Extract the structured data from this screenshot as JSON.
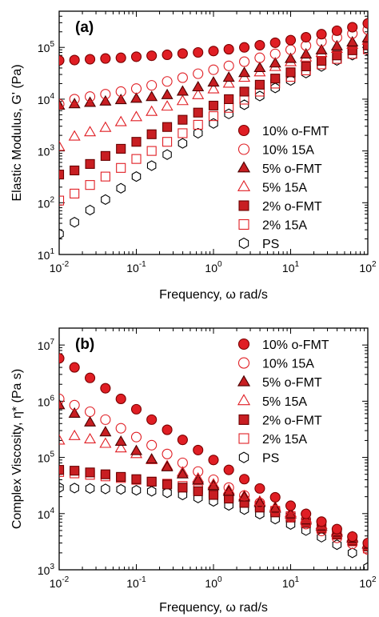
{
  "chart_data": [
    {
      "type": "scatter",
      "panel_label": "(a)",
      "xlabel": "Frequency, ω rad/s",
      "ylabel": "Elastic Modulus, G' (Pa)",
      "xscale": "log",
      "yscale": "log",
      "xlim": [
        0.01,
        100
      ],
      "ylim": [
        10,
        500000
      ],
      "x_ticks": [
        0.01,
        0.1,
        1,
        10,
        100
      ],
      "x_tick_labels": [
        [
          "10",
          "-2"
        ],
        [
          "10",
          "-1"
        ],
        [
          "10",
          "0"
        ],
        [
          "10",
          "1"
        ],
        [
          "10",
          "2"
        ]
      ],
      "y_ticks": [
        10,
        100,
        1000,
        10000,
        100000
      ],
      "y_tick_labels": [
        [
          "10",
          "1"
        ],
        [
          "10",
          "2"
        ],
        [
          "10",
          "3"
        ],
        [
          "10",
          "4"
        ],
        [
          "10",
          "5"
        ]
      ],
      "legend_position": "right",
      "x": [
        0.01,
        0.0158,
        0.0251,
        0.0398,
        0.0631,
        0.1,
        0.158,
        0.251,
        0.398,
        0.631,
        1,
        1.58,
        2.51,
        3.98,
        6.31,
        10,
        15.8,
        25.1,
        39.8,
        63.1,
        100
      ],
      "series": [
        {
          "name": "10% o-FMT",
          "marker": "circle",
          "fill": "#e01e24",
          "stroke": "#7a0000",
          "values": [
            56000,
            57000,
            59000,
            61000,
            63000,
            66000,
            69000,
            72000,
            76000,
            80000,
            85000,
            92000,
            100000,
            110000,
            123000,
            138000,
            157000,
            180000,
            210000,
            245000,
            290000
          ]
        },
        {
          "name": "10% 15A",
          "marker": "circle",
          "fill": "none",
          "stroke": "#e01e24",
          "values": [
            8000,
            10000,
            11200,
            12500,
            14000,
            16000,
            18500,
            22000,
            26000,
            31000,
            37000,
            44000,
            53000,
            63000,
            75000,
            90000,
            108000,
            130000,
            155000,
            185000,
            220000
          ]
        },
        {
          "name": "5% o-FMT",
          "marker": "triangle",
          "fill": "#c81e22",
          "stroke": "#4a0000",
          "values": [
            7500,
            8000,
            8500,
            9000,
            9600,
            10200,
            11000,
            12000,
            14000,
            17000,
            21000,
            26000,
            32000,
            40000,
            49000,
            60000,
            73000,
            88000,
            105000,
            125000,
            150000
          ]
        },
        {
          "name": "5% 15A",
          "marker": "triangle",
          "fill": "none",
          "stroke": "#e01e24",
          "values": [
            1200,
            1900,
            2300,
            2800,
            3600,
            4500,
            5700,
            7200,
            9200,
            12000,
            15500,
            20000,
            26000,
            33000,
            42000,
            52000,
            64000,
            78000,
            94000,
            113000,
            135000
          ]
        },
        {
          "name": "2% o-FMT",
          "marker": "square",
          "fill": "#c81e22",
          "stroke": "#6a0000",
          "values": [
            350,
            420,
            560,
            800,
            1100,
            1500,
            2100,
            2900,
            4000,
            5500,
            7500,
            10000,
            14000,
            19000,
            25000,
            33000,
            43000,
            55000,
            70000,
            88000,
            110000
          ]
        },
        {
          "name": "2% 15A",
          "marker": "square",
          "fill": "none",
          "stroke": "#e01e24",
          "values": [
            110,
            150,
            220,
            320,
            470,
            700,
            1000,
            1500,
            2200,
            3200,
            4700,
            6800,
            9800,
            14000,
            20000,
            27000,
            36000,
            47000,
            60000,
            75000,
            92000
          ]
        },
        {
          "name": "PS",
          "marker": "hexagon",
          "fill": "none",
          "stroke": "#000000",
          "values": [
            25,
            42,
            72,
            115,
            190,
            320,
            520,
            850,
            1400,
            2200,
            3400,
            5200,
            7800,
            11500,
            16500,
            23000,
            32000,
            43000,
            56000,
            71000,
            88000
          ]
        }
      ]
    },
    {
      "type": "scatter",
      "panel_label": "(b)",
      "xlabel": "Frequency, ω rad/s",
      "ylabel": "Complex Viscosity, η* (Pa s)",
      "xscale": "log",
      "yscale": "log",
      "xlim": [
        0.01,
        100
      ],
      "ylim": [
        1000,
        20000000
      ],
      "x_ticks": [
        0.01,
        0.1,
        1,
        10,
        100
      ],
      "x_tick_labels": [
        [
          "10",
          "-2"
        ],
        [
          "10",
          "-1"
        ],
        [
          "10",
          "0"
        ],
        [
          "10",
          "1"
        ],
        [
          "10",
          "2"
        ]
      ],
      "y_ticks": [
        1000,
        10000,
        100000,
        1000000,
        10000000
      ],
      "y_tick_labels": [
        [
          "10",
          "3"
        ],
        [
          "10",
          "4"
        ],
        [
          "10",
          "5"
        ],
        [
          "10",
          "6"
        ],
        [
          "10",
          "7"
        ]
      ],
      "legend_position": "top-right",
      "x": [
        0.01,
        0.0158,
        0.0251,
        0.0398,
        0.0631,
        0.1,
        0.158,
        0.251,
        0.398,
        0.631,
        1,
        1.58,
        2.51,
        3.98,
        6.31,
        10,
        15.8,
        25.1,
        39.8,
        63.1,
        100
      ],
      "series": [
        {
          "name": "10% o-FMT",
          "marker": "circle",
          "fill": "#e01e24",
          "stroke": "#7a0000",
          "values": [
            5800000,
            4000000,
            2600000,
            1700000,
            1100000,
            720000,
            470000,
            310000,
            205000,
            135000,
            90000,
            60000,
            41000,
            28000,
            19500,
            13800,
            9900,
            7200,
            5300,
            3900,
            3000
          ]
        },
        {
          "name": "10% 15A",
          "marker": "circle",
          "fill": "none",
          "stroke": "#e01e24",
          "values": [
            1100000,
            850000,
            650000,
            470000,
            330000,
            230000,
            165000,
            115000,
            80000,
            56000,
            40000,
            29000,
            21000,
            15500,
            11500,
            8600,
            6500,
            4900,
            3700,
            2900,
            2300
          ]
        },
        {
          "name": "5% o-FMT",
          "marker": "triangle",
          "fill": "#c81e22",
          "stroke": "#4a0000",
          "values": [
            850000,
            600000,
            420000,
            280000,
            190000,
            130000,
            92000,
            67000,
            50000,
            39000,
            31000,
            24500,
            19500,
            15500,
            12300,
            9700,
            7600,
            5900,
            4600,
            3600,
            2800
          ]
        },
        {
          "name": "5% 15A",
          "marker": "triangle",
          "fill": "none",
          "stroke": "#e01e24",
          "values": [
            200000,
            240000,
            210000,
            175000,
            145000,
            115000,
            90000,
            70000,
            54000,
            42000,
            33000,
            26000,
            20500,
            16300,
            13000,
            10300,
            8100,
            6300,
            4900,
            3800,
            2900
          ]
        },
        {
          "name": "2% o-FMT",
          "marker": "square",
          "fill": "#c81e22",
          "stroke": "#6a0000",
          "values": [
            60000,
            58000,
            54000,
            50000,
            45000,
            41000,
            37000,
            33000,
            29000,
            25000,
            21500,
            18500,
            15500,
            12800,
            10500,
            8500,
            6800,
            5400,
            4300,
            3300,
            2600
          ]
        },
        {
          "name": "2% 15A",
          "marker": "square",
          "fill": "none",
          "stroke": "#e01e24",
          "values": [
            55000,
            52000,
            49000,
            46000,
            43000,
            40000,
            37000,
            34000,
            31000,
            27000,
            23500,
            20000,
            16800,
            13800,
            11200,
            9000,
            7100,
            5500,
            4200,
            3200,
            2400
          ]
        },
        {
          "name": "PS",
          "marker": "hexagon",
          "fill": "none",
          "stroke": "#000000",
          "values": [
            29000,
            28500,
            28000,
            27500,
            27000,
            26000,
            25000,
            23500,
            21500,
            19000,
            16500,
            14000,
            11800,
            9800,
            8000,
            6400,
            5000,
            3800,
            2800,
            2000,
            1100
          ]
        }
      ]
    }
  ]
}
